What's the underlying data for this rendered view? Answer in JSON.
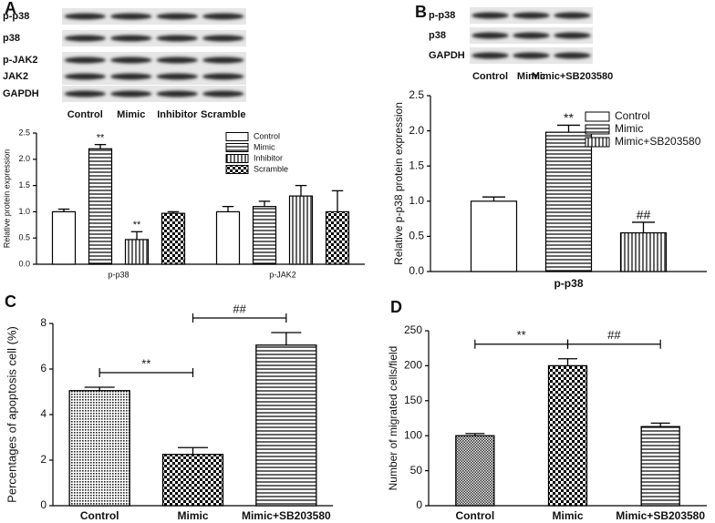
{
  "chart_data": [
    {
      "type": "bar",
      "panel": "A",
      "ylabel": "Relative protein expression",
      "blot": {
        "rows": [
          "p-p38",
          "p38",
          "p-JAK2",
          "JAK2",
          "GAPDH"
        ],
        "lanes": [
          "Control",
          "Mimic",
          "Inhibitor",
          "Scramble"
        ]
      },
      "categories": [
        "p-p38",
        "p-JAK2"
      ],
      "series": [
        {
          "name": "Control",
          "pattern": "none",
          "values": [
            1.0,
            1.0
          ],
          "errors": [
            0.05,
            0.1
          ],
          "annotations": [
            null,
            null
          ]
        },
        {
          "name": "Mimic",
          "pattern": "hlines",
          "values": [
            2.2,
            1.1
          ],
          "errors": [
            0.08,
            0.1
          ],
          "annotations": [
            "**",
            null
          ]
        },
        {
          "name": "Inhibitor",
          "pattern": "vlines",
          "values": [
            0.47,
            1.3
          ],
          "errors": [
            0.15,
            0.2
          ],
          "annotations": [
            "**",
            null
          ]
        },
        {
          "name": "Scramble",
          "pattern": "checker",
          "values": [
            0.97,
            1.0
          ],
          "errors": [
            0.03,
            0.4
          ],
          "annotations": [
            null,
            null
          ]
        }
      ],
      "ylim": [
        0,
        2.5
      ],
      "yticks": [
        {
          "value": 0,
          "label": "0.0"
        },
        0.5,
        {
          "value": 1,
          "label": "1.0"
        },
        1.5,
        {
          "value": 2,
          "label": "2.0"
        },
        2.5
      ],
      "legend": "top-right"
    },
    {
      "type": "bar",
      "panel": "B",
      "ylabel": "Relative p-p38 protein expression",
      "blot": {
        "rows": [
          "p-p38",
          "p38",
          "GAPDH"
        ],
        "lanes": [
          "Control",
          "Mimic",
          "Mimic+SB203580"
        ]
      },
      "categories": [
        "p-p38"
      ],
      "series": [
        {
          "name": "Control",
          "pattern": "none",
          "values": [
            1.0
          ],
          "errors": [
            0.06
          ],
          "annotations": [
            null
          ]
        },
        {
          "name": "Mimic",
          "pattern": "hlines",
          "values": [
            1.98
          ],
          "errors": [
            0.1
          ],
          "annotations": [
            "**"
          ]
        },
        {
          "name": "Mimic+SB203580",
          "pattern": "vlines",
          "values": [
            0.55
          ],
          "errors": [
            0.15
          ],
          "annotations": [
            "##"
          ]
        }
      ],
      "ylim": [
        0,
        2.5
      ],
      "yticks": [
        {
          "value": 0,
          "label": "0.0"
        },
        0.5,
        {
          "value": 1,
          "label": "1.0"
        },
        1.5,
        {
          "value": 2,
          "label": "2.0"
        },
        2.5
      ],
      "legend": "top-right"
    },
    {
      "type": "bar",
      "panel": "C",
      "ylabel": "Percentages of apoptosis cell (%)",
      "categories": [
        "Control",
        "Mimic",
        "Mimic+SB203580"
      ],
      "patterns": [
        "dots",
        "checker",
        "hlines"
      ],
      "values": [
        5.05,
        2.25,
        7.05
      ],
      "errors": [
        0.15,
        0.3,
        0.55
      ],
      "comparisons": [
        {
          "label": "**",
          "pair": [
            "Control",
            "Mimic"
          ]
        },
        {
          "label": "##",
          "pair": [
            "Mimic",
            "Mimic+SB203580"
          ]
        }
      ],
      "ylim": [
        0,
        8
      ],
      "yticks": [
        0,
        2,
        4,
        6,
        8
      ]
    },
    {
      "type": "bar",
      "panel": "D",
      "ylabel": "Number of migrated cells/field",
      "categories": [
        "Control",
        "Mimic",
        "Mimic+SB203580"
      ],
      "patterns": [
        "finechecker",
        "checker",
        "hlines"
      ],
      "values": [
        100,
        200,
        113
      ],
      "errors": [
        3,
        10,
        5
      ],
      "comparisons": [
        {
          "label": "**",
          "pair": [
            "Control",
            "Mimic"
          ]
        },
        {
          "label": "##",
          "pair": [
            "Mimic",
            "Mimic+SB203580"
          ]
        }
      ],
      "ylim": [
        0,
        250
      ],
      "yticks": [
        0,
        50,
        100,
        150,
        200,
        250
      ]
    }
  ]
}
